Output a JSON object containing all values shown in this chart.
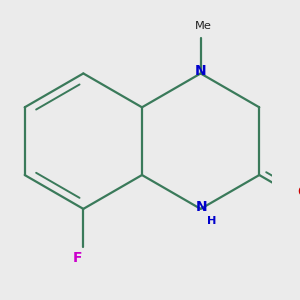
{
  "background_color": "#EBEBEB",
  "bond_color": "#3A7A5A",
  "N_color": "#0000CC",
  "O_color": "#CC0000",
  "F_color": "#CC00CC",
  "line_width": 1.6,
  "inner_lw": 1.4,
  "figsize": [
    3.0,
    3.0
  ],
  "dpi": 100,
  "xlim": [
    -2.2,
    2.2
  ],
  "ylim": [
    -2.5,
    2.5
  ],
  "scale": 1.0,
  "font_size": 10.0,
  "methyl_label": "Me",
  "methyl_text": "Me"
}
